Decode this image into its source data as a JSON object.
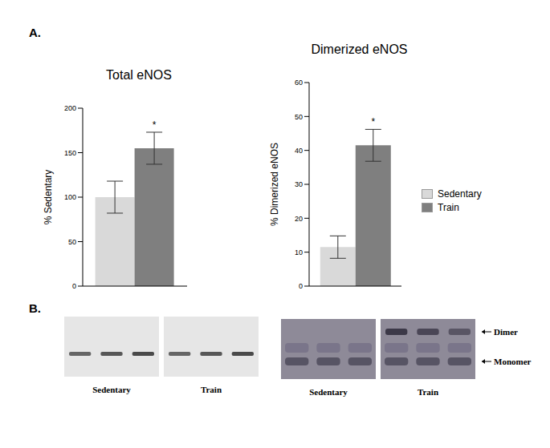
{
  "panel_labels": [
    "A.",
    "B."
  ],
  "chart_data": [
    {
      "type": "bar",
      "title": "Total eNOS",
      "y_label": "% Sedentary",
      "categories": [
        null
      ],
      "ylim": [
        0,
        200
      ],
      "yticks": [
        0,
        50,
        100,
        150,
        200
      ],
      "series": [
        {
          "name": "Sedentary",
          "color": "#d9d9d9",
          "values": [
            100
          ],
          "errors": [
            18
          ]
        },
        {
          "name": "Train",
          "color": "#7f7f7f",
          "values": [
            155
          ],
          "errors": [
            18
          ],
          "annotations": [
            "*"
          ]
        }
      ]
    },
    {
      "type": "bar",
      "title": "Dimerized eNOS",
      "y_label": "% Dimerized eNOS",
      "categories": [
        null
      ],
      "ylim": [
        0,
        60
      ],
      "yticks": [
        0,
        10,
        20,
        30,
        40,
        50,
        60
      ],
      "legend": "right",
      "series": [
        {
          "name": "Sedentary",
          "color": "#d9d9d9",
          "values": [
            11.5
          ],
          "errors": [
            3.3
          ]
        },
        {
          "name": "Train",
          "color": "#7f7f7f",
          "values": [
            41.5
          ],
          "errors": [
            4.7
          ],
          "annotations": [
            "*"
          ]
        }
      ]
    }
  ],
  "blots": [
    {
      "groups": [
        "Sedentary",
        "Train"
      ],
      "lanes": 3
    },
    {
      "groups": [
        "Sedentary",
        "Train"
      ],
      "lanes": 3,
      "bands": [
        "Dimer",
        "Monomer"
      ]
    }
  ]
}
